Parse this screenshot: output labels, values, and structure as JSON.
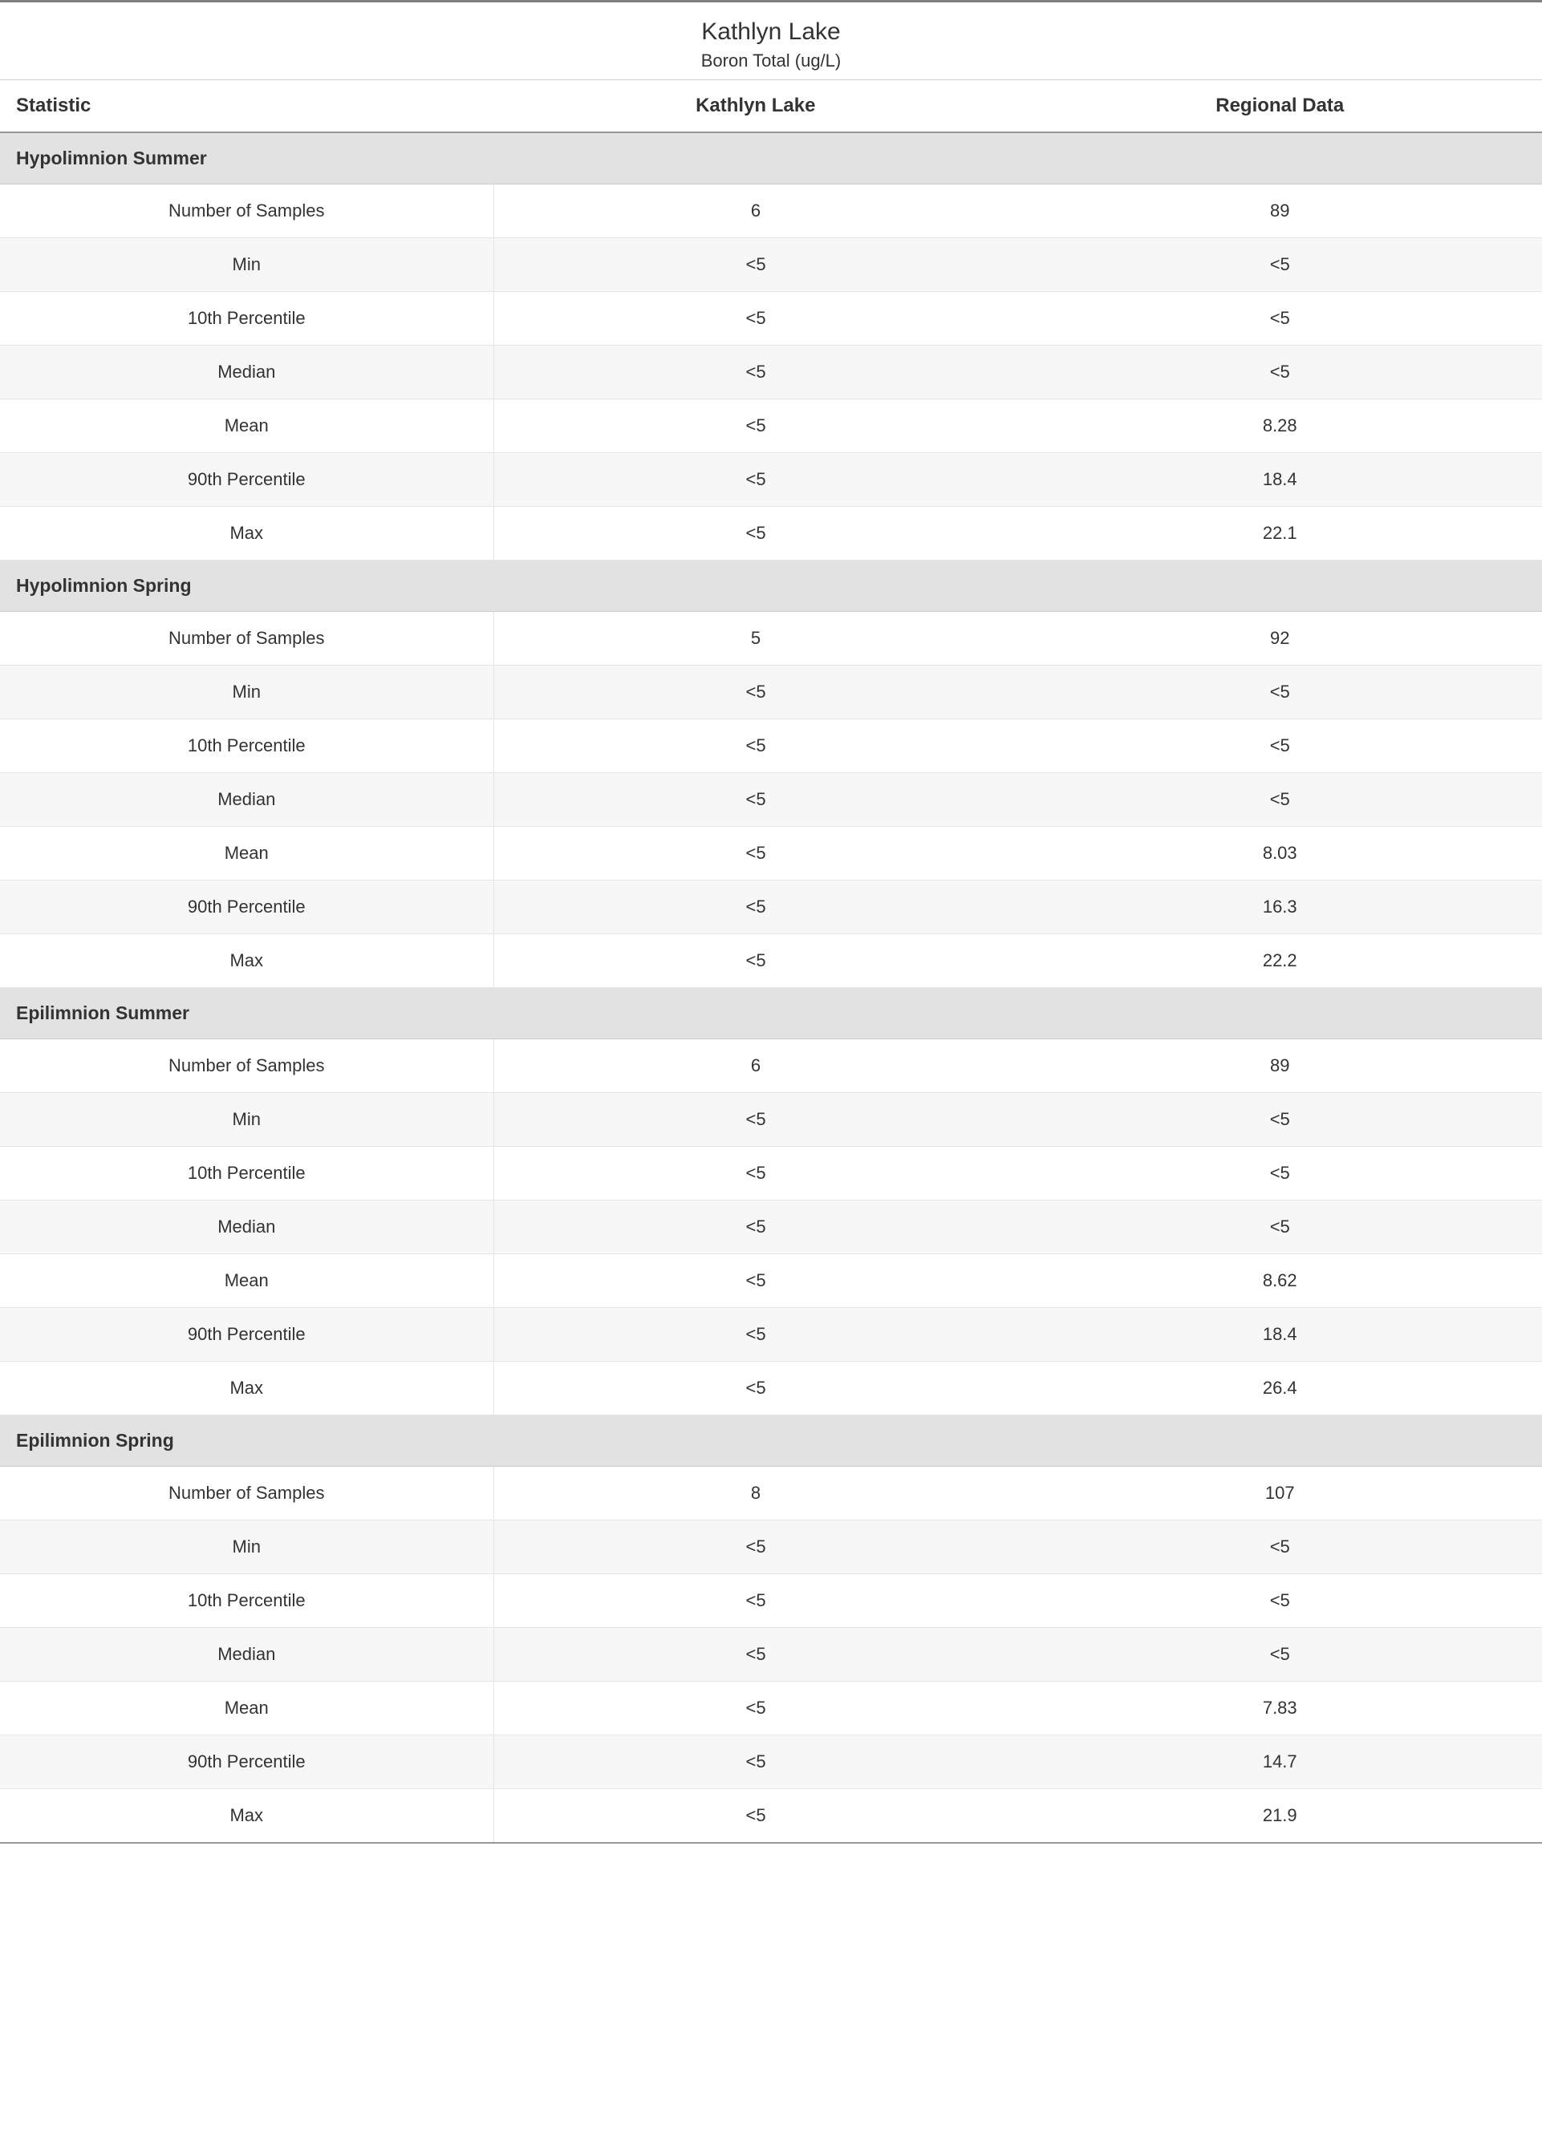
{
  "title": "Kathlyn Lake",
  "subtitle": "Boron Total (ug/L)",
  "columns": {
    "stat": "Statistic",
    "site": "Kathlyn Lake",
    "region": "Regional Data"
  },
  "colors": {
    "border_top": "#808080",
    "section_bg": "#e2e2e2",
    "row_alt_bg": "#f7f7f7",
    "row_plain_bg": "#ffffff",
    "grid_line": "#e5e5e5",
    "header_underline": "#999999",
    "text": "#333333"
  },
  "sections": [
    {
      "name": "Hypolimnion Summer",
      "rows": [
        {
          "stat": "Number of Samples",
          "site": "6",
          "region": "89"
        },
        {
          "stat": "Min",
          "site": "<5",
          "region": "<5"
        },
        {
          "stat": "10th Percentile",
          "site": "<5",
          "region": "<5"
        },
        {
          "stat": "Median",
          "site": "<5",
          "region": "<5"
        },
        {
          "stat": "Mean",
          "site": "<5",
          "region": "8.28"
        },
        {
          "stat": "90th Percentile",
          "site": "<5",
          "region": "18.4"
        },
        {
          "stat": "Max",
          "site": "<5",
          "region": "22.1"
        }
      ]
    },
    {
      "name": "Hypolimnion Spring",
      "rows": [
        {
          "stat": "Number of Samples",
          "site": "5",
          "region": "92"
        },
        {
          "stat": "Min",
          "site": "<5",
          "region": "<5"
        },
        {
          "stat": "10th Percentile",
          "site": "<5",
          "region": "<5"
        },
        {
          "stat": "Median",
          "site": "<5",
          "region": "<5"
        },
        {
          "stat": "Mean",
          "site": "<5",
          "region": "8.03"
        },
        {
          "stat": "90th Percentile",
          "site": "<5",
          "region": "16.3"
        },
        {
          "stat": "Max",
          "site": "<5",
          "region": "22.2"
        }
      ]
    },
    {
      "name": "Epilimnion Summer",
      "rows": [
        {
          "stat": "Number of Samples",
          "site": "6",
          "region": "89"
        },
        {
          "stat": "Min",
          "site": "<5",
          "region": "<5"
        },
        {
          "stat": "10th Percentile",
          "site": "<5",
          "region": "<5"
        },
        {
          "stat": "Median",
          "site": "<5",
          "region": "<5"
        },
        {
          "stat": "Mean",
          "site": "<5",
          "region": "8.62"
        },
        {
          "stat": "90th Percentile",
          "site": "<5",
          "region": "18.4"
        },
        {
          "stat": "Max",
          "site": "<5",
          "region": "26.4"
        }
      ]
    },
    {
      "name": "Epilimnion Spring",
      "rows": [
        {
          "stat": "Number of Samples",
          "site": "8",
          "region": "107"
        },
        {
          "stat": "Min",
          "site": "<5",
          "region": "<5"
        },
        {
          "stat": "10th Percentile",
          "site": "<5",
          "region": "<5"
        },
        {
          "stat": "Median",
          "site": "<5",
          "region": "<5"
        },
        {
          "stat": "Mean",
          "site": "<5",
          "region": "7.83"
        },
        {
          "stat": "90th Percentile",
          "site": "<5",
          "region": "14.7"
        },
        {
          "stat": "Max",
          "site": "<5",
          "region": "21.9"
        }
      ]
    }
  ]
}
